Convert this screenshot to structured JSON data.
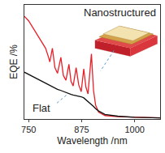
{
  "chart_data": {
    "type": "line",
    "x_label": "Wavelength /nm",
    "y_label": "EQE /%",
    "x": [
      740,
      750,
      760,
      770,
      780,
      790,
      797,
      800,
      806,
      812,
      818,
      826,
      832,
      838,
      845,
      850,
      855,
      862,
      868,
      874,
      880,
      885,
      890,
      898,
      903,
      908,
      915,
      930,
      960,
      1000,
      1060
    ],
    "series": [
      {
        "name": "Nanostructured",
        "color": "#e8202a",
        "values": [
          90,
          86,
          80,
          74,
          68,
          62,
          54,
          50,
          62,
          45,
          40,
          54,
          38,
          34,
          48,
          33,
          29,
          45,
          30,
          24,
          44,
          28,
          22,
          57,
          25,
          12,
          6,
          3,
          2,
          1.5,
          1
        ]
      },
      {
        "name": "Flat",
        "color": "#111111",
        "values": [
          41,
          39,
          37,
          35,
          33,
          31,
          30,
          29,
          28,
          27,
          26,
          25,
          24,
          23,
          22,
          21.5,
          21,
          20.5,
          20,
          19.5,
          18.5,
          17,
          15.5,
          13,
          11,
          9,
          7,
          4,
          2.5,
          1.5,
          1
        ]
      }
    ],
    "annotations": [
      "Nanostructured",
      "Flat"
    ],
    "xlim": [
      740,
      1060
    ],
    "xticks": [
      750,
      875,
      1000
    ],
    "ylim": [
      0,
      100
    ],
    "tick_labels": "x",
    "grid": false
  }
}
